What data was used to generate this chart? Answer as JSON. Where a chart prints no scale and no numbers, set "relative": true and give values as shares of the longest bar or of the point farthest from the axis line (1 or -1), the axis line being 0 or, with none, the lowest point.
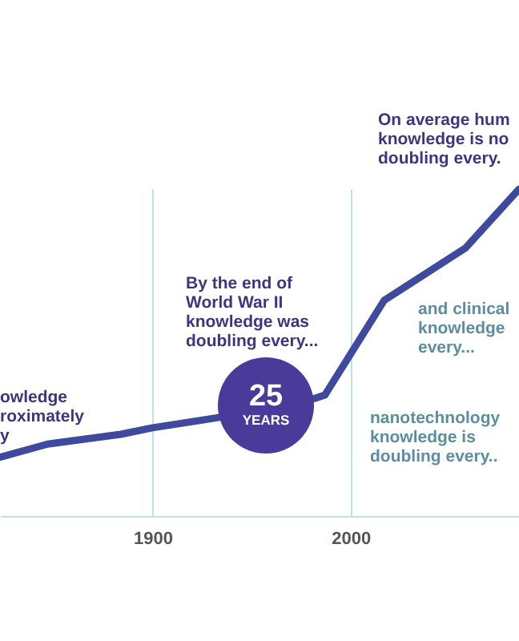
{
  "chart_data": {
    "type": "line",
    "relative": true,
    "x": [
      1823,
      1847,
      1884,
      1900,
      1932,
      1982,
      1987,
      2017,
      2058,
      2085
    ],
    "series": [
      {
        "color": "#3f4a9e",
        "values": [
          0.18,
          0.22,
          0.25,
          0.27,
          0.3,
          0.36,
          0.37,
          0.66,
          0.82,
          1.0
        ]
      }
    ],
    "xlim": [
      1823,
      2085
    ],
    "xticks": [
      1900,
      2000
    ],
    "grid": "x",
    "tick_labels": "x",
    "marker": "none",
    "line_style": "solid",
    "annotations": [
      "On average hum\nknowledge is no\ndoubling every.",
      "By the end of\nWorld War II\nknowledge was\ndoubling every...",
      "25\nYEARS",
      "owledge\nroximately\ny",
      "and clinical\nknowledge\nevery...",
      "nanotechnology\nknowledge is\ndoubling every.."
    ]
  }
}
